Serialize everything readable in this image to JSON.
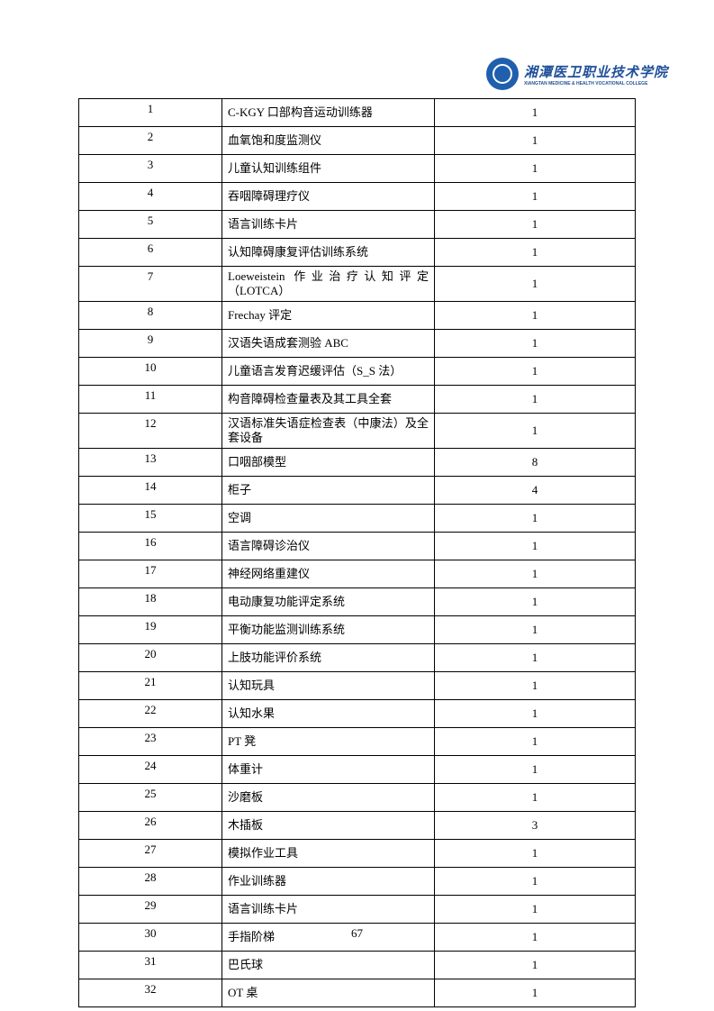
{
  "header": {
    "logo_cn": "湘潭医卫职业技术学院",
    "logo_en": "XIANGTAN MEDICINE & HEALTH VOCATIONAL COLLEGE"
  },
  "rows": [
    {
      "no": "1",
      "name": "C-KGY 口部构音运动训练器",
      "qty": "1"
    },
    {
      "no": "2",
      "name": "血氧饱和度监测仪",
      "qty": "1"
    },
    {
      "no": "3",
      "name": "儿童认知训练组件",
      "qty": "1"
    },
    {
      "no": "4",
      "name": "吞咽障碍理疗仪",
      "qty": "1"
    },
    {
      "no": "5",
      "name": "语言训练卡片",
      "qty": "1"
    },
    {
      "no": "6",
      "name": "认知障碍康复评估训练系统",
      "qty": "1"
    },
    {
      "no": "7",
      "name": "Loeweistein 作业治疗认知评定（LOTCA）",
      "qty": "1"
    },
    {
      "no": "8",
      "name": "Frechay 评定",
      "qty": "1"
    },
    {
      "no": "9",
      "name": "汉语失语成套测验 ABC",
      "qty": "1"
    },
    {
      "no": "10",
      "name": "儿童语言发育迟缓评估（S_S 法）",
      "qty": "1"
    },
    {
      "no": "11",
      "name": "构音障碍检查量表及其工具全套",
      "qty": "1"
    },
    {
      "no": "12",
      "name": "汉语标准失语症检查表（中康法）及全套设备",
      "qty": "1"
    },
    {
      "no": "13",
      "name": "口咽部模型",
      "qty": "8"
    },
    {
      "no": "14",
      "name": "柜子",
      "qty": "4"
    },
    {
      "no": "15",
      "name": "空调",
      "qty": "1"
    },
    {
      "no": "16",
      "name": "语言障碍诊治仪",
      "qty": "1"
    },
    {
      "no": "17",
      "name": "神经网络重建仪",
      "qty": "1"
    },
    {
      "no": "18",
      "name": "电动康复功能评定系统",
      "qty": "1"
    },
    {
      "no": "19",
      "name": "平衡功能监测训练系统",
      "qty": "1"
    },
    {
      "no": "20",
      "name": "上肢功能评价系统",
      "qty": "1"
    },
    {
      "no": "21",
      "name": "认知玩具",
      "qty": "1"
    },
    {
      "no": "22",
      "name": "认知水果",
      "qty": "1"
    },
    {
      "no": "23",
      "name": "PT 凳",
      "qty": "1"
    },
    {
      "no": "24",
      "name": "体重计",
      "qty": "1"
    },
    {
      "no": "25",
      "name": "沙磨板",
      "qty": "1"
    },
    {
      "no": "26",
      "name": "木插板",
      "qty": "3"
    },
    {
      "no": "27",
      "name": "模拟作业工具",
      "qty": "1"
    },
    {
      "no": "28",
      "name": "作业训练器",
      "qty": "1"
    },
    {
      "no": "29",
      "name": "语言训练卡片",
      "qty": "1"
    },
    {
      "no": "30",
      "name": "手指阶梯",
      "qty": "1"
    },
    {
      "no": "31",
      "name": "巴氏球",
      "qty": "1"
    },
    {
      "no": "32",
      "name": "OT 桌",
      "qty": "1"
    }
  ],
  "page_number": "67"
}
